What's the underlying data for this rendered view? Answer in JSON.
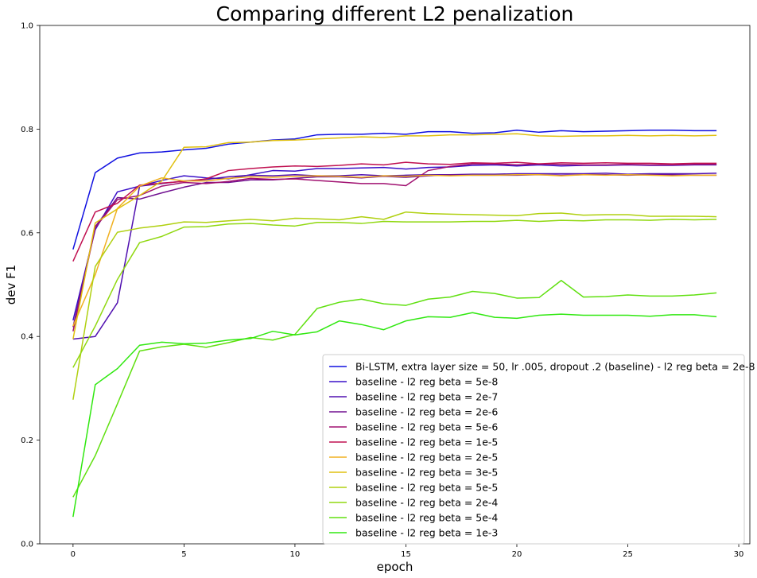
{
  "chart_data": {
    "type": "line",
    "title": "Comparing different L2 penalization",
    "xlabel": "epoch",
    "ylabel": "dev F1",
    "xlim": [
      -1.5,
      30.5
    ],
    "ylim": [
      0.0,
      1.0
    ],
    "xticks": [
      0,
      5,
      10,
      15,
      20,
      25,
      30
    ],
    "yticks": [
      0.0,
      0.2,
      0.4,
      0.6,
      0.8,
      1.0
    ],
    "grid": false,
    "legend_position": "lower-right",
    "x": [
      0,
      1,
      2,
      3,
      4,
      5,
      6,
      7,
      8,
      9,
      10,
      11,
      12,
      13,
      14,
      15,
      16,
      17,
      18,
      19,
      20,
      21,
      22,
      23,
      24,
      25,
      26,
      27,
      28,
      29
    ],
    "series": [
      {
        "name": "Bi-LSTM, extra layer size = 50, lr .005, dropout .2 (baseline) - l2 reg beta = 2e-8",
        "color": "#1010e0",
        "values": [
          0.568,
          0.716,
          0.744,
          0.754,
          0.756,
          0.76,
          0.763,
          0.771,
          0.775,
          0.779,
          0.781,
          0.789,
          0.79,
          0.79,
          0.792,
          0.79,
          0.795,
          0.795,
          0.792,
          0.793,
          0.798,
          0.794,
          0.797,
          0.795,
          0.796,
          0.797,
          0.798,
          0.798,
          0.797,
          0.797
        ]
      },
      {
        "name": "baseline - l2 reg beta = 5e-8",
        "color": "#3a10c8",
        "values": [
          0.431,
          0.606,
          0.679,
          0.69,
          0.701,
          0.71,
          0.706,
          0.704,
          0.712,
          0.72,
          0.719,
          0.724,
          0.724,
          0.725,
          0.726,
          0.723,
          0.726,
          0.727,
          0.73,
          0.731,
          0.729,
          0.731,
          0.729,
          0.73,
          0.73,
          0.731,
          0.73,
          0.73,
          0.731,
          0.731
        ]
      },
      {
        "name": "baseline - l2 reg beta = 2e-7",
        "color": "#5010b0",
        "values": [
          0.395,
          0.4,
          0.465,
          0.69,
          0.695,
          0.7,
          0.703,
          0.708,
          0.711,
          0.71,
          0.712,
          0.71,
          0.71,
          0.712,
          0.71,
          0.711,
          0.712,
          0.712,
          0.713,
          0.713,
          0.714,
          0.714,
          0.714,
          0.714,
          0.715,
          0.713,
          0.714,
          0.714,
          0.714,
          0.715
        ]
      },
      {
        "name": "baseline - l2 reg beta = 2e-6",
        "color": "#701090",
        "values": [
          0.418,
          0.612,
          0.668,
          0.665,
          0.677,
          0.688,
          0.697,
          0.697,
          0.702,
          0.702,
          0.705,
          0.708,
          0.708,
          0.706,
          0.709,
          0.707,
          0.71,
          0.712,
          0.711,
          0.711,
          0.711,
          0.712,
          0.711,
          0.712,
          0.712,
          0.711,
          0.712,
          0.712,
          0.711,
          0.711
        ]
      },
      {
        "name": "baseline - l2 reg beta = 5e-6",
        "color": "#a01070",
        "values": [
          0.41,
          0.61,
          0.664,
          0.672,
          0.69,
          0.697,
          0.695,
          0.699,
          0.705,
          0.703,
          0.704,
          0.701,
          0.698,
          0.695,
          0.695,
          0.691,
          0.72,
          0.728,
          0.733,
          0.733,
          0.731,
          0.733,
          0.732,
          0.731,
          0.731,
          0.732,
          0.731,
          0.731,
          0.732,
          0.732
        ]
      },
      {
        "name": "baseline - l2 reg beta = 1e-5",
        "color": "#c01050",
        "values": [
          0.545,
          0.64,
          0.657,
          0.692,
          0.696,
          0.699,
          0.704,
          0.72,
          0.724,
          0.727,
          0.729,
          0.728,
          0.73,
          0.733,
          0.731,
          0.736,
          0.733,
          0.732,
          0.735,
          0.734,
          0.736,
          0.733,
          0.735,
          0.734,
          0.735,
          0.734,
          0.734,
          0.733,
          0.734,
          0.734
        ]
      },
      {
        "name": "baseline - l2 reg beta = 2e-5",
        "color": "#f0b020",
        "values": [
          0.42,
          0.519,
          0.647,
          0.69,
          0.706,
          0.7,
          0.7,
          0.705,
          0.708,
          0.707,
          0.709,
          0.71,
          0.709,
          0.707,
          0.71,
          0.709,
          0.711,
          0.71,
          0.711,
          0.711,
          0.712,
          0.712,
          0.71,
          0.712,
          0.711,
          0.712,
          0.711,
          0.71,
          0.711,
          0.711
        ]
      },
      {
        "name": "baseline - l2 reg beta = 3e-5",
        "color": "#e0c010",
        "values": [
          0.395,
          0.619,
          0.646,
          0.672,
          0.7,
          0.765,
          0.766,
          0.774,
          0.775,
          0.778,
          0.779,
          0.781,
          0.783,
          0.785,
          0.784,
          0.787,
          0.787,
          0.789,
          0.789,
          0.79,
          0.791,
          0.787,
          0.786,
          0.787,
          0.787,
          0.788,
          0.787,
          0.788,
          0.787,
          0.788
        ]
      },
      {
        "name": "baseline - l2 reg beta = 5e-5",
        "color": "#b0d010",
        "values": [
          0.278,
          0.535,
          0.601,
          0.609,
          0.614,
          0.621,
          0.62,
          0.623,
          0.626,
          0.623,
          0.628,
          0.627,
          0.625,
          0.631,
          0.626,
          0.64,
          0.637,
          0.636,
          0.635,
          0.634,
          0.633,
          0.637,
          0.638,
          0.634,
          0.635,
          0.635,
          0.632,
          0.632,
          0.632,
          0.631
        ]
      },
      {
        "name": "baseline - l2 reg beta = 2e-4",
        "color": "#90d810",
        "values": [
          0.34,
          0.42,
          0.51,
          0.581,
          0.593,
          0.611,
          0.612,
          0.617,
          0.618,
          0.615,
          0.613,
          0.62,
          0.62,
          0.618,
          0.622,
          0.621,
          0.621,
          0.621,
          0.622,
          0.622,
          0.624,
          0.622,
          0.624,
          0.623,
          0.625,
          0.625,
          0.624,
          0.626,
          0.625,
          0.626
        ]
      },
      {
        "name": "baseline - l2 reg beta = 5e-4",
        "color": "#60e010",
        "values": [
          0.09,
          0.17,
          0.27,
          0.372,
          0.38,
          0.385,
          0.379,
          0.388,
          0.398,
          0.393,
          0.404,
          0.454,
          0.466,
          0.472,
          0.463,
          0.46,
          0.472,
          0.476,
          0.487,
          0.483,
          0.474,
          0.475,
          0.508,
          0.476,
          0.477,
          0.48,
          0.478,
          0.478,
          0.48,
          0.484
        ]
      },
      {
        "name": "baseline - l2 reg beta = 1e-3",
        "color": "#30e810",
        "values": [
          0.052,
          0.307,
          0.338,
          0.383,
          0.389,
          0.386,
          0.387,
          0.393,
          0.396,
          0.41,
          0.403,
          0.409,
          0.43,
          0.423,
          0.413,
          0.43,
          0.438,
          0.437,
          0.446,
          0.437,
          0.435,
          0.441,
          0.443,
          0.441,
          0.441,
          0.441,
          0.439,
          0.442,
          0.442,
          0.438
        ]
      }
    ]
  }
}
